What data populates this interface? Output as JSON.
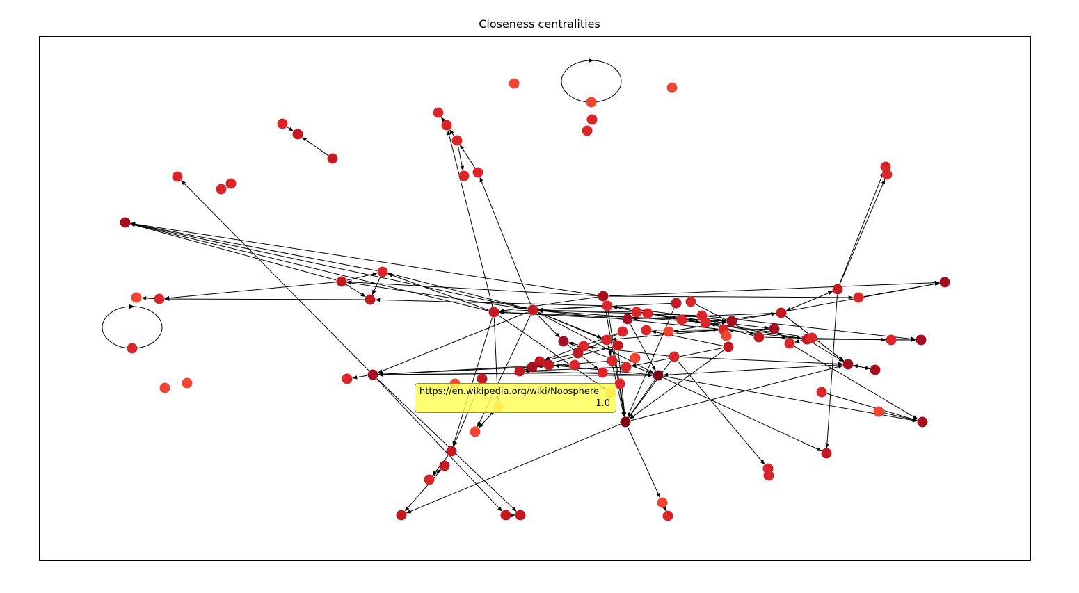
{
  "title": "Closeness centralities",
  "tooltip": {
    "url": "https://en.wikipedia.org/wiki/Noosphere",
    "value": "1.0"
  },
  "colors": {
    "dark": "#7a0614",
    "deep": "#a30f20",
    "mid": "#c01a23",
    "red": "#d9262a",
    "light": "#ef4533",
    "highlight": "#f08c12",
    "edge": "#000000",
    "tooltip_bg": "#ffff66"
  },
  "chart_data": {
    "type": "network",
    "title": "Closeness centralities",
    "node_count": 120,
    "highlighted_node": {
      "label": "https://en.wikipedia.org/wiki/Noosphere",
      "closeness": 1.0
    }
  }
}
